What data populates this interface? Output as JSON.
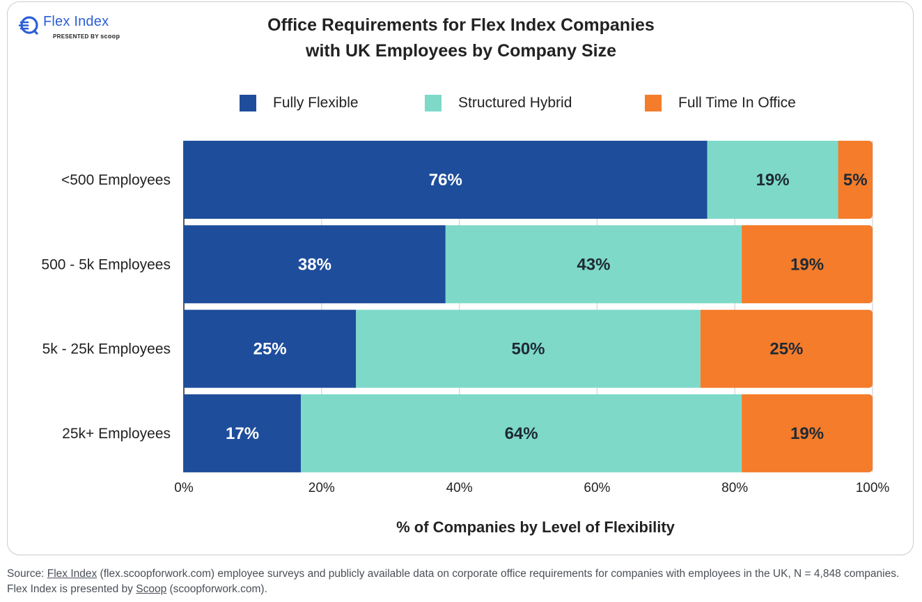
{
  "logo": {
    "title": "Flex Index",
    "presented_by": "PRESENTED BY",
    "brand": "scoop"
  },
  "chart_data": {
    "type": "bar",
    "orientation": "horizontal",
    "stacked": true,
    "title_line1": "Office Requirements for Flex Index Companies",
    "title_line2": "with UK Employees by Company Size",
    "categories": [
      "<500 Employees",
      "500 - 5k Employees",
      "5k - 25k Employees",
      "25k+ Employees"
    ],
    "series": [
      {
        "name": "Fully Flexible",
        "color": "#1e4d9b",
        "label_color": "#ffffff",
        "values": [
          76,
          38,
          25,
          17
        ],
        "labels": [
          "76%",
          "38%",
          "25%",
          "17%"
        ]
      },
      {
        "name": "Structured Hybrid",
        "color": "#7ed9c9",
        "label_color": "#1e2a35",
        "values": [
          19,
          43,
          50,
          64
        ],
        "labels": [
          "19%",
          "43%",
          "50%",
          "64%"
        ]
      },
      {
        "name": "Full Time In Office",
        "color": "#f47c2a",
        "label_color": "#1e2a35",
        "values": [
          5,
          19,
          25,
          19
        ],
        "labels": [
          "5%",
          "19%",
          "25%",
          "19%"
        ]
      }
    ],
    "xlim": [
      0,
      100
    ],
    "xticks": [
      "0%",
      "20%",
      "40%",
      "60%",
      "80%",
      "100%"
    ],
    "xlabel": "% of Companies by Level of Flexibility",
    "ylabel": "",
    "grid": true,
    "legend_position": "top"
  },
  "footer": {
    "prefix": "Source: ",
    "link1": "Flex Index",
    "middle": " (flex.scoopforwork.com) employee surveys and publicly available data on corporate office requirements for companies with employees in the UK, N = 4,848 companies. Flex Index is presented by ",
    "link2": "Scoop",
    "suffix": " (scoopforwork.com)."
  }
}
